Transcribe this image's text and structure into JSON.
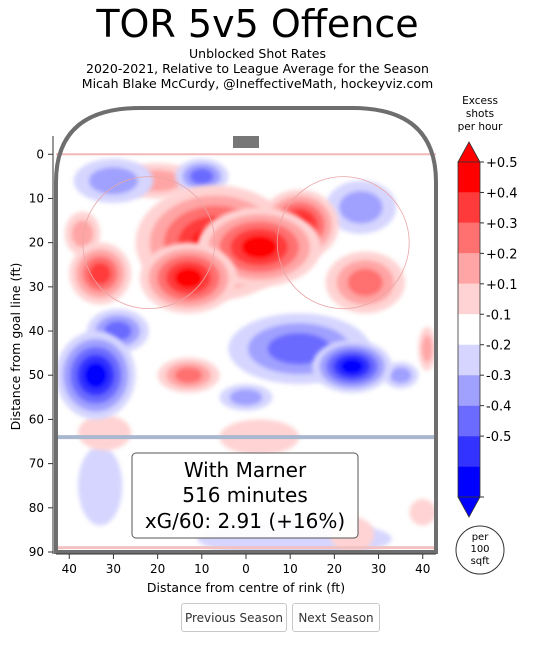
{
  "header": {
    "title": "TOR 5v5 Offence",
    "subtitle_1": "Unblocked Shot Rates",
    "subtitle_2": "2020-2021, Relative to League Average for the Season",
    "subtitle_3": "Micah Blake McCurdy, @IneffectiveMath, hockeyviz.com"
  },
  "chart_data": {
    "type": "heatmap",
    "title": "TOR 5v5 Offence",
    "xlabel": "Distance from centre of rink (ft)",
    "ylabel": "Distance from goal line (ft)",
    "xlim": [
      43,
      -43
    ],
    "ylim": [
      90,
      -3
    ],
    "x_ticks": [
      "40",
      "30",
      "20",
      "10",
      "0",
      "10",
      "20",
      "30",
      "40"
    ],
    "x_tick_values": [
      40,
      30,
      20,
      10,
      0,
      -10,
      -20,
      -30,
      -40
    ],
    "y_ticks": [
      "0",
      "10",
      "20",
      "30",
      "40",
      "50",
      "60",
      "70",
      "80",
      "90"
    ],
    "y_tick_values": [
      0,
      10,
      20,
      30,
      40,
      50,
      60,
      70,
      80,
      90
    ],
    "colorbar": {
      "label": "Excess shots per hour",
      "label_lines": [
        "Excess",
        "shots",
        "per hour"
      ],
      "ticks": [
        "+0.5",
        "+0.4",
        "+0.3",
        "+0.2",
        "+0.1",
        "-0.1",
        "-0.2",
        "-0.3",
        "-0.4",
        "-0.5"
      ],
      "levels": [
        0.5,
        0.4,
        0.3,
        0.2,
        0.1,
        -0.1,
        -0.2,
        -0.3,
        -0.4,
        -0.5
      ],
      "colors_high_to_low": [
        "#ff0000",
        "#ff3a3a",
        "#ff7070",
        "#ffa5a5",
        "#ffd3d3",
        "#ffffff",
        "#d5d5ff",
        "#a0a0ff",
        "#6b6bff",
        "#3333ff",
        "#0000ff"
      ],
      "unit_badge_lines": [
        "per",
        "100",
        "sqft"
      ]
    },
    "regions": [
      {
        "x": -3,
        "y": 21,
        "rx": 14,
        "ry": 9,
        "value": 0.5
      },
      {
        "x": 13,
        "y": 28,
        "rx": 11,
        "ry": 8,
        "value": 0.5
      },
      {
        "x": 7,
        "y": 20,
        "rx": 18,
        "ry": 13,
        "value": 0.45
      },
      {
        "x": -12,
        "y": 16,
        "rx": 9,
        "ry": 8,
        "value": 0.45
      },
      {
        "x": 20,
        "y": 6,
        "rx": 9,
        "ry": 4,
        "value": 0.2
      },
      {
        "x": 33,
        "y": 27,
        "rx": 7,
        "ry": 7,
        "value": 0.4
      },
      {
        "x": 37,
        "y": 18,
        "rx": 4,
        "ry": 5,
        "value": 0.2
      },
      {
        "x": -27,
        "y": 29,
        "rx": 9,
        "ry": 7,
        "value": 0.3
      },
      {
        "x": 13,
        "y": 50,
        "rx": 7,
        "ry": 4,
        "value": 0.3
      },
      {
        "x": 32,
        "y": 63,
        "rx": 6,
        "ry": 4,
        "value": 0.15
      },
      {
        "x": -3,
        "y": 64,
        "rx": 9,
        "ry": 4,
        "value": 0.15
      },
      {
        "x": -41,
        "y": 44,
        "rx": 2,
        "ry": 5,
        "value": 0.2
      },
      {
        "x": -24,
        "y": 86,
        "rx": 5,
        "ry": 4,
        "value": 0.15
      },
      {
        "x": -40,
        "y": 81,
        "rx": 3,
        "ry": 3,
        "value": 0.1
      },
      {
        "x": 34,
        "y": 50,
        "rx": 9,
        "ry": 10,
        "value": -0.5
      },
      {
        "x": 29,
        "y": 40,
        "rx": 7,
        "ry": 5,
        "value": -0.3
      },
      {
        "x": -12,
        "y": 44,
        "rx": 16,
        "ry": 8,
        "value": -0.3
      },
      {
        "x": -24,
        "y": 48,
        "rx": 9,
        "ry": 6,
        "value": -0.5
      },
      {
        "x": -35,
        "y": 50,
        "rx": 4,
        "ry": 3,
        "value": -0.2
      },
      {
        "x": 30,
        "y": 6,
        "rx": 9,
        "ry": 5,
        "value": -0.2
      },
      {
        "x": 10,
        "y": 5,
        "rx": 6,
        "ry": 4,
        "value": -0.3
      },
      {
        "x": -26,
        "y": 12,
        "rx": 8,
        "ry": 6,
        "value": -0.2
      },
      {
        "x": 0,
        "y": 55,
        "rx": 6,
        "ry": 3,
        "value": -0.2
      },
      {
        "x": 33,
        "y": 75,
        "rx": 5,
        "ry": 9,
        "value": -0.1
      },
      {
        "x": -11,
        "y": 87,
        "rx": 22,
        "ry": 4,
        "value": -0.1
      }
    ],
    "annotation": {
      "player": "With Marner",
      "toi": "516 minutes",
      "xg": "xG/60: 2.91 (+16%)"
    }
  },
  "nav": {
    "prev_label": "Previous Season",
    "next_label": "Next Season"
  }
}
